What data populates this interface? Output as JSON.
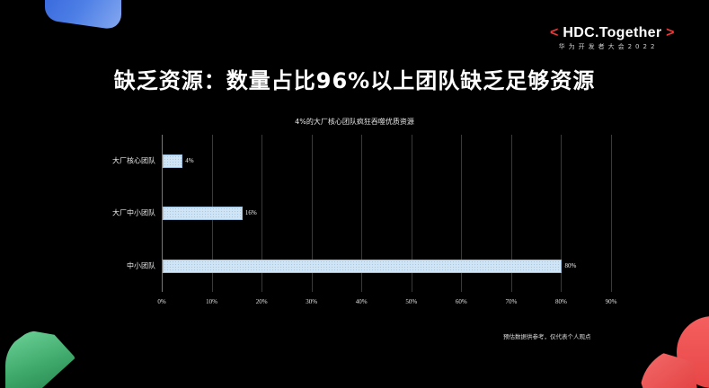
{
  "brand": {
    "left_bracket": "<",
    "name": "HDC.Together",
    "right_bracket": ">",
    "subtitle": "华为开发者大会2022"
  },
  "slide": {
    "title": "缺乏资源：数量占比96%以上团队缺乏足够资源",
    "footnote": "预估数据供参考，仅代表个人观点"
  },
  "colors": {
    "background": "#000000",
    "bar_fill": "#cfe5f6",
    "accent_red": "#e83b3b",
    "deco_blue": "#4d7fe6",
    "deco_green": "#3ea86a",
    "deco_red": "#e84646"
  },
  "chart_data": {
    "type": "bar",
    "orientation": "horizontal",
    "title": "4%的大厂核心团队疯狂吞噬优质资源",
    "categories": [
      "大厂核心团队",
      "大厂中小团队",
      "中小团队"
    ],
    "values": [
      4,
      16,
      80
    ],
    "value_labels": [
      "4%",
      "16%",
      "80%"
    ],
    "xlabel": "",
    "ylabel": "",
    "xlim": [
      0,
      90
    ],
    "x_ticks": [
      "0%",
      "10%",
      "20%",
      "30%",
      "40%",
      "50%",
      "60%",
      "70%",
      "80%",
      "90%"
    ],
    "grid": true,
    "legend": null
  }
}
